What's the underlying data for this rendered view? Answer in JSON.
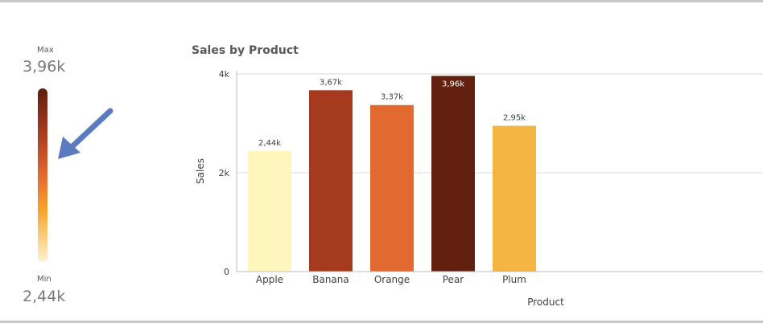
{
  "legend": {
    "max_label": "Max",
    "max_value": "3,96k",
    "min_label": "Min",
    "min_value": "2,44k",
    "gradient_colors": [
      "#5e1e0d",
      "#a63a1f",
      "#e2692f",
      "#f5a42b",
      "#fdf3d0"
    ]
  },
  "annotation": {
    "arrow_color": "#5b7bc0"
  },
  "chart_data": {
    "type": "bar",
    "title": "Sales by Product",
    "xlabel": "Product",
    "ylabel": "Sales",
    "ylim": [
      0,
      4000
    ],
    "yticks": [
      {
        "value": 0,
        "label": "0"
      },
      {
        "value": 2000,
        "label": "2k"
      },
      {
        "value": 4000,
        "label": "4k"
      }
    ],
    "categories": [
      "Apple",
      "Banana",
      "Orange",
      "Pear",
      "Plum"
    ],
    "values": [
      2440,
      3670,
      3370,
      3960,
      2950
    ],
    "value_labels": [
      "2,44k",
      "3,67k",
      "3,37k",
      "3,96k",
      "2,95k"
    ],
    "colors": [
      "#fff6bd",
      "#a63a1f",
      "#e2692f",
      "#63200f",
      "#f5b542"
    ],
    "grid": true
  }
}
